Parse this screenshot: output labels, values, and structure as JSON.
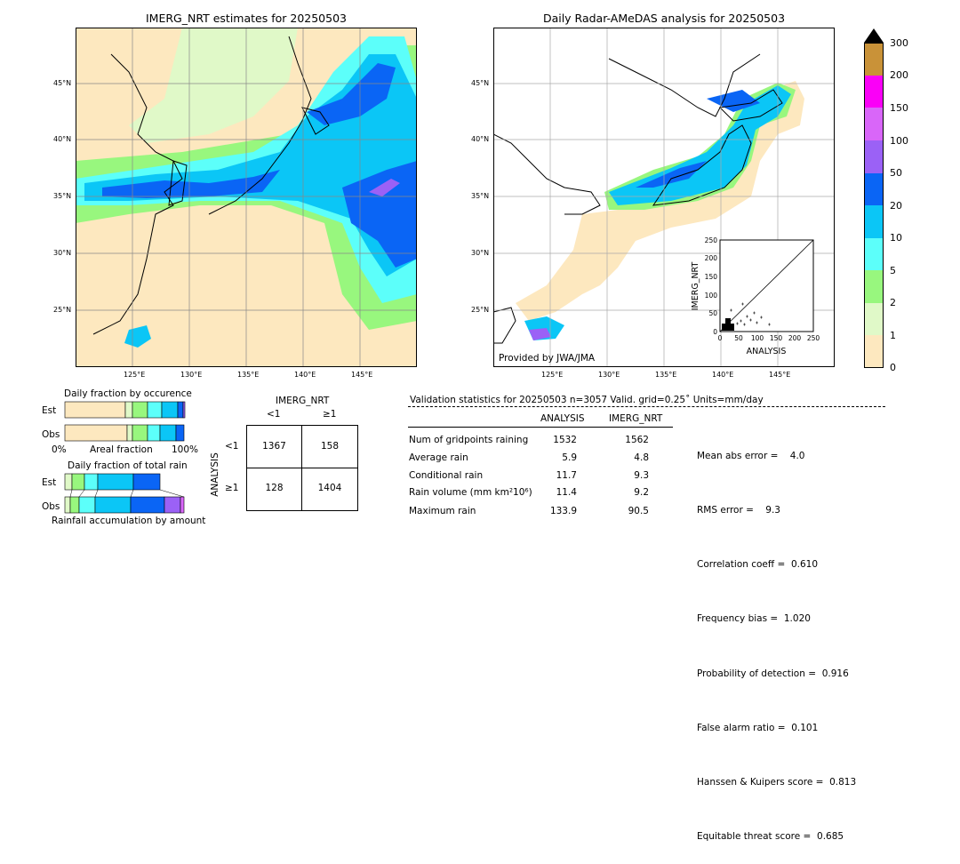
{
  "map_left": {
    "title": "IMERG_NRT estimates for 20250503",
    "lat_labels": [
      "45°N",
      "40°N",
      "35°N",
      "30°N",
      "25°N"
    ],
    "lon_labels": [
      "125°E",
      "130°E",
      "135°E",
      "140°E",
      "145°E"
    ]
  },
  "map_right": {
    "title": "Daily Radar-AMeDAS analysis for 20250503",
    "lat_labels": [
      "45°N",
      "40°N",
      "35°N",
      "30°N",
      "25°N"
    ],
    "lon_labels": [
      "125°E",
      "130°E",
      "135°E",
      "140°E",
      "145°E"
    ],
    "credit": "Provided by JWA/JMA"
  },
  "colorbar": {
    "labels": [
      "0",
      "1",
      "2",
      "5",
      "10",
      "20",
      "50",
      "100",
      "150",
      "200",
      "300"
    ],
    "colors": [
      "#fde8bf",
      "#e0f9c8",
      "#98f77e",
      "#5cfffa",
      "#0bc6f6",
      "#0a65f5",
      "#9b61f6",
      "#d966f9",
      "#fa00f7",
      "#c99238"
    ]
  },
  "scatter": {
    "xlabel": "ANALYSIS",
    "ylabel": "IMERG_NRT",
    "ticks": [
      "0",
      "50",
      "100",
      "150",
      "200",
      "250"
    ]
  },
  "occurrence": {
    "title": "Daily fraction by occurence",
    "rows": [
      "Est",
      "Obs"
    ],
    "axis_left": "0%",
    "axis_mid": "Areal fraction",
    "axis_right": "100%"
  },
  "total_rain": {
    "title": "Daily fraction of total rain",
    "rows": [
      "Est",
      "Obs"
    ],
    "footer": "Rainfall accumulation by amount"
  },
  "contingency": {
    "col_header": "IMERG_NRT",
    "col_labels": [
      "<1",
      "≥1"
    ],
    "row_header": "ANALYSIS",
    "row_labels": [
      "<1",
      "≥1"
    ],
    "cells": [
      [
        "1367",
        "158"
      ],
      [
        "128",
        "1404"
      ]
    ]
  },
  "validation": {
    "header": "Validation statistics for 20250503  n=3057 Valid. grid=0.25˚ Units=mm/day",
    "col_analysis": "ANALYSIS",
    "col_imerg": "IMERG_NRT",
    "rows": [
      {
        "label": "Num of gridpoints raining",
        "analysis": "1532",
        "imerg": "1562"
      },
      {
        "label": "Average rain",
        "analysis": "5.9",
        "imerg": "4.8"
      },
      {
        "label": "Conditional rain",
        "analysis": "11.7",
        "imerg": "9.3"
      },
      {
        "label": "Rain volume (mm km²10⁶)",
        "analysis": "11.4",
        "imerg": "9.2"
      },
      {
        "label": "Maximum rain",
        "analysis": "133.9",
        "imerg": "90.5"
      }
    ],
    "scores": [
      "Mean abs error =    4.0",
      "RMS error =    9.3",
      "Correlation coeff =  0.610",
      "Frequency bias =  1.020",
      "Probability of detection =  0.916",
      "False alarm ratio =  0.101",
      "Hanssen & Kuipers score =  0.813",
      "Equitable threat score =  0.685"
    ]
  },
  "chart_data": {
    "type": "table",
    "title": "Validation statistics for 20250503",
    "columns": [
      "ANALYSIS",
      "IMERG_NRT"
    ],
    "rows": {
      "Num of gridpoints raining": [
        1532,
        1562
      ],
      "Average rain": [
        5.9,
        4.8
      ],
      "Conditional rain": [
        11.7,
        9.3
      ],
      "Rain volume (mm km²10⁶)": [
        11.4,
        9.2
      ],
      "Maximum rain": [
        133.9,
        90.5
      ]
    },
    "contingency": [
      [
        1367,
        158
      ],
      [
        128,
        1404
      ]
    ]
  }
}
